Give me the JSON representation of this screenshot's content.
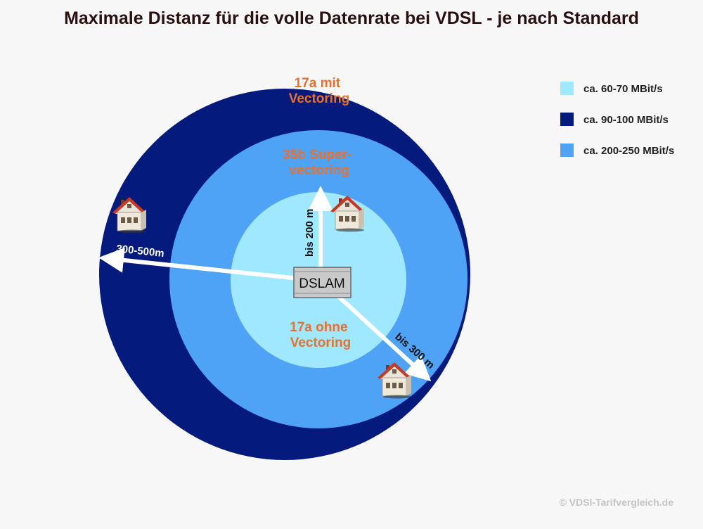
{
  "title": "Maximale Distanz für die volle Datenrate bei VDSL  - je nach Standard",
  "colors": {
    "outer_ring": "#041a7c",
    "middle_ring": "#4ea3f7",
    "inner_ring": "#9fe8ff",
    "ring_label": "#e9702e",
    "arrow": "#ffffff",
    "background": "#f7f7f7"
  },
  "rings": {
    "outer": {
      "label_line1": "17a mit",
      "label_line2": "Vectoring"
    },
    "middle": {
      "label_line1": "35b Super-",
      "label_line2": "vectoring"
    },
    "inner": {
      "label_line1": "17a ohne",
      "label_line2": "Vectoring"
    }
  },
  "center_device": {
    "label": "DSLAM"
  },
  "distances": {
    "up": "bis 200 m",
    "down_right": "bis 300 m",
    "left": "300-500m"
  },
  "legend": [
    {
      "label": "ca. 60-70 MBit/s",
      "color": "#9fe8ff"
    },
    {
      "label": "ca. 90-100 MBit/s",
      "color": "#041a7c"
    },
    {
      "label": "ca. 200-250 MBit/s",
      "color": "#4ea3f7"
    }
  ],
  "icons": [
    "house-icon",
    "house-icon",
    "house-icon"
  ],
  "copyright": "© VDSl-Tarifvergleich.de"
}
